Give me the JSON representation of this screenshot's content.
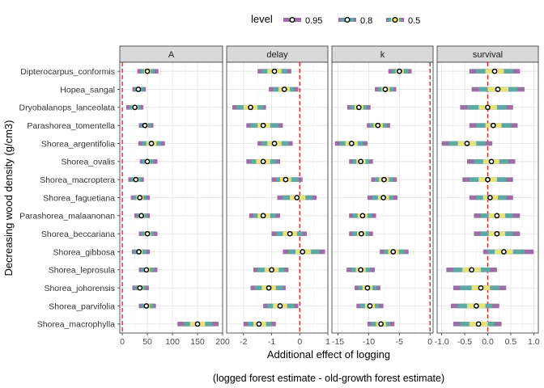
{
  "chart_data": {
    "type": "interval",
    "legend": {
      "title": "level",
      "position": "top",
      "entries": [
        {
          "label": "0.95",
          "color": "#9b6fa3"
        },
        {
          "label": "0.8",
          "color": "#5fa9a5"
        },
        {
          "label": "0.5",
          "color": "#e8e27a"
        }
      ]
    },
    "xlabel": "Additional effect of logging",
    "caption": "(logged forest estimate - old-growth forest estimate)",
    "ylabel": "Decreasing wood density (g/cm3)",
    "categories": [
      "Dipterocarpus_conformis",
      "Hopea_sangal",
      "Dryobalanops_lanceolata",
      "Parashorea_tomentella",
      "Shorea_argentifolia",
      "Shorea_ovalis",
      "Shorea_macroptera",
      "Shorea_faguetiana",
      "Parashorea_malaanonan",
      "Shorea_beccariana",
      "Shorea_gibbosa",
      "Shorea_leprosula",
      "Shorea_johorensis",
      "Shorea_parvifolia",
      "Shorea_macrophylla"
    ],
    "panels": [
      {
        "name": "A",
        "xlim": [
          -5,
          200
        ],
        "ticks": [
          0,
          50,
          100,
          150,
          200
        ],
        "tick_labels": [
          "0",
          "50",
          "100",
          "150",
          "200"
        ],
        "ref_line": 0,
        "intervals": [
          {
            "median": 50,
            "i95": [
              30,
              72
            ],
            "i80": [
              37,
              64
            ],
            "i50": [
              43,
              57
            ]
          },
          {
            "median": 32,
            "i95": [
              20,
              47
            ],
            "i80": [
              24,
              42
            ],
            "i50": [
              28,
              37
            ]
          },
          {
            "median": 25,
            "i95": [
              8,
              42
            ],
            "i80": [
              13,
              37
            ],
            "i50": [
              19,
              31
            ]
          },
          {
            "median": 45,
            "i95": [
              33,
              62
            ],
            "i80": [
              37,
              57
            ],
            "i50": [
              41,
              51
            ]
          },
          {
            "median": 58,
            "i95": [
              32,
              85
            ],
            "i80": [
              40,
              77
            ],
            "i50": [
              48,
              68
            ]
          },
          {
            "median": 50,
            "i95": [
              35,
              70
            ],
            "i80": [
              40,
              63
            ],
            "i50": [
              45,
              56
            ]
          },
          {
            "median": 27,
            "i95": [
              12,
              43
            ],
            "i80": [
              17,
              38
            ],
            "i50": [
              22,
              33
            ]
          },
          {
            "median": 35,
            "i95": [
              17,
              55
            ],
            "i80": [
              22,
              48
            ],
            "i50": [
              28,
              42
            ]
          },
          {
            "median": 38,
            "i95": [
              24,
              55
            ],
            "i80": [
              29,
              50
            ],
            "i50": [
              33,
              44
            ]
          },
          {
            "median": 50,
            "i95": [
              33,
              70
            ],
            "i80": [
              38,
              63
            ],
            "i50": [
              44,
              57
            ]
          },
          {
            "median": 33,
            "i95": [
              19,
              55
            ],
            "i80": [
              23,
              48
            ],
            "i50": [
              28,
              40
            ]
          },
          {
            "median": 48,
            "i95": [
              33,
              70
            ],
            "i80": [
              38,
              63
            ],
            "i50": [
              43,
              55
            ]
          },
          {
            "median": 35,
            "i95": [
              20,
              53
            ],
            "i80": [
              25,
              47
            ],
            "i50": [
              30,
              41
            ]
          },
          {
            "median": 48,
            "i95": [
              33,
              67
            ],
            "i80": [
              38,
              62
            ],
            "i50": [
              43,
              55
            ]
          },
          {
            "median": 150,
            "i95": [
              110,
              192
            ],
            "i80": [
              122,
              180
            ],
            "i50": [
              135,
              165
            ]
          }
        ]
      },
      {
        "name": "delay",
        "xlim": [
          -2.6,
          1.0
        ],
        "ticks": [
          -2,
          -1,
          0,
          1
        ],
        "tick_labels": [
          "-2",
          "-1",
          "0",
          "1"
        ],
        "ref_line": 0,
        "intervals": [
          {
            "median": -0.9,
            "i95": [
              -1.5,
              -0.3
            ],
            "i80": [
              -1.35,
              -0.45
            ],
            "i50": [
              -1.15,
              -0.65
            ]
          },
          {
            "median": -0.55,
            "i95": [
              -1.1,
              -0.05
            ],
            "i80": [
              -0.95,
              -0.2
            ],
            "i50": [
              -0.75,
              -0.35
            ]
          },
          {
            "median": -1.75,
            "i95": [
              -2.4,
              -1.2
            ],
            "i80": [
              -2.25,
              -1.3
            ],
            "i50": [
              -2.0,
              -1.5
            ]
          },
          {
            "median": -1.3,
            "i95": [
              -1.9,
              -0.6
            ],
            "i80": [
              -1.75,
              -0.75
            ],
            "i50": [
              -1.5,
              -1.05
            ]
          },
          {
            "median": -0.9,
            "i95": [
              -1.5,
              -0.25
            ],
            "i80": [
              -1.35,
              -0.4
            ],
            "i50": [
              -1.15,
              -0.65
            ]
          },
          {
            "median": -1.3,
            "i95": [
              -1.9,
              -0.7
            ],
            "i80": [
              -1.75,
              -0.85
            ],
            "i50": [
              -1.55,
              -1.05
            ]
          },
          {
            "median": -0.5,
            "i95": [
              -1.0,
              0.1
            ],
            "i80": [
              -0.85,
              -0.05
            ],
            "i50": [
              -0.7,
              -0.3
            ]
          },
          {
            "median": -0.1,
            "i95": [
              -0.8,
              0.6
            ],
            "i80": [
              -0.6,
              0.45
            ],
            "i50": [
              -0.35,
              0.2
            ]
          },
          {
            "median": -1.3,
            "i95": [
              -1.8,
              -0.7
            ],
            "i80": [
              -1.65,
              -0.85
            ],
            "i50": [
              -1.5,
              -1.05
            ]
          },
          {
            "median": -0.35,
            "i95": [
              -1.0,
              0.25
            ],
            "i80": [
              -0.85,
              0.1
            ],
            "i50": [
              -0.6,
              -0.1
            ]
          },
          {
            "median": 0.1,
            "i95": [
              -0.6,
              0.9
            ],
            "i80": [
              -0.4,
              0.7
            ],
            "i50": [
              -0.15,
              0.4
            ]
          },
          {
            "median": -1.0,
            "i95": [
              -1.65,
              -0.4
            ],
            "i80": [
              -1.5,
              -0.55
            ],
            "i50": [
              -1.25,
              -0.75
            ]
          },
          {
            "median": -1.1,
            "i95": [
              -1.75,
              -0.5
            ],
            "i80": [
              -1.6,
              -0.6
            ],
            "i50": [
              -1.35,
              -0.85
            ]
          },
          {
            "median": -0.7,
            "i95": [
              -1.3,
              -0.05
            ],
            "i80": [
              -1.15,
              -0.2
            ],
            "i50": [
              -0.95,
              -0.45
            ]
          },
          {
            "median": -1.45,
            "i95": [
              -2.0,
              -0.85
            ],
            "i80": [
              -1.85,
              -1.0
            ],
            "i50": [
              -1.65,
              -1.2
            ]
          }
        ]
      },
      {
        "name": "k",
        "xlim": [
          -16,
          0.5
        ],
        "ticks": [
          -15,
          -10,
          -5,
          0
        ],
        "tick_labels": [
          "-15",
          "-10",
          "-5",
          "0"
        ],
        "ref_line": 0,
        "intervals": [
          {
            "median": -5.0,
            "i95": [
              -6.8,
              -3.0
            ],
            "i80": [
              -6.2,
              -3.6
            ],
            "i50": [
              -5.6,
              -4.3
            ]
          },
          {
            "median": -7.3,
            "i95": [
              -9.0,
              -5.5
            ],
            "i80": [
              -8.5,
              -6.0
            ],
            "i50": [
              -7.9,
              -6.6
            ]
          },
          {
            "median": -11.6,
            "i95": [
              -13.5,
              -9.7
            ],
            "i80": [
              -12.9,
              -10.3
            ],
            "i50": [
              -12.3,
              -10.9
            ]
          },
          {
            "median": -8.5,
            "i95": [
              -10.3,
              -6.5
            ],
            "i80": [
              -9.8,
              -7.0
            ],
            "i50": [
              -9.2,
              -7.7
            ]
          },
          {
            "median": -12.8,
            "i95": [
              -15.5,
              -10.2
            ],
            "i80": [
              -14.7,
              -10.9
            ],
            "i50": [
              -13.8,
              -11.8
            ]
          },
          {
            "median": -11.3,
            "i95": [
              -13.2,
              -9.3
            ],
            "i80": [
              -12.6,
              -9.9
            ],
            "i50": [
              -12.0,
              -10.5
            ]
          },
          {
            "median": -7.5,
            "i95": [
              -9.6,
              -5.4
            ],
            "i80": [
              -9.0,
              -6.0
            ],
            "i50": [
              -8.3,
              -6.7
            ]
          },
          {
            "median": -7.6,
            "i95": [
              -10.2,
              -5.3
            ],
            "i80": [
              -9.4,
              -6.0
            ],
            "i50": [
              -8.5,
              -6.7
            ]
          },
          {
            "median": -11.0,
            "i95": [
              -13.2,
              -8.8
            ],
            "i80": [
              -12.6,
              -9.5
            ],
            "i50": [
              -11.8,
              -10.2
            ]
          },
          {
            "median": -11.2,
            "i95": [
              -13.2,
              -9.3
            ],
            "i80": [
              -12.6,
              -9.9
            ],
            "i50": [
              -11.9,
              -10.5
            ]
          },
          {
            "median": -6.0,
            "i95": [
              -8.2,
              -3.5
            ],
            "i80": [
              -7.5,
              -4.2
            ],
            "i50": [
              -6.8,
              -5.1
            ]
          },
          {
            "median": -11.3,
            "i95": [
              -13.6,
              -9.0
            ],
            "i80": [
              -12.9,
              -9.7
            ],
            "i50": [
              -12.1,
              -10.5
            ]
          },
          {
            "median": -10.2,
            "i95": [
              -12.3,
              -8.1
            ],
            "i80": [
              -11.7,
              -8.7
            ],
            "i50": [
              -11.0,
              -9.4
            ]
          },
          {
            "median": -9.8,
            "i95": [
              -12.0,
              -7.6
            ],
            "i80": [
              -11.4,
              -8.3
            ],
            "i50": [
              -10.6,
              -9.0
            ]
          },
          {
            "median": -8.0,
            "i95": [
              -10.2,
              -5.8
            ],
            "i80": [
              -9.6,
              -6.5
            ],
            "i50": [
              -8.8,
              -7.2
            ]
          }
        ]
      },
      {
        "name": "survival",
        "xlim": [
          -1.1,
          1.1
        ],
        "ticks": [
          -1.0,
          -0.5,
          0.0,
          0.5,
          1.0
        ],
        "tick_labels": [
          "-1.0",
          "-0.5",
          "0.0",
          "0.5",
          "1.0"
        ],
        "ref_line": 0,
        "intervals": [
          {
            "median": 0.15,
            "i95": [
              -0.4,
              0.7
            ],
            "i80": [
              -0.25,
              0.55
            ],
            "i50": [
              -0.05,
              0.35
            ]
          },
          {
            "median": 0.22,
            "i95": [
              -0.35,
              0.8
            ],
            "i80": [
              -0.2,
              0.65
            ],
            "i50": [
              0.0,
              0.45
            ]
          },
          {
            "median": 0.0,
            "i95": [
              -0.6,
              0.55
            ],
            "i80": [
              -0.45,
              0.4
            ],
            "i50": [
              -0.2,
              0.2
            ]
          },
          {
            "median": 0.12,
            "i95": [
              -0.4,
              0.65
            ],
            "i80": [
              -0.25,
              0.5
            ],
            "i50": [
              -0.05,
              0.3
            ]
          },
          {
            "median": -0.45,
            "i95": [
              -1.0,
              0.1
            ],
            "i80": [
              -0.85,
              -0.05
            ],
            "i50": [
              -0.65,
              -0.25
            ]
          },
          {
            "median": 0.08,
            "i95": [
              -0.45,
              0.6
            ],
            "i80": [
              -0.3,
              0.45
            ],
            "i50": [
              -0.1,
              0.25
            ]
          },
          {
            "median": 0.0,
            "i95": [
              -0.55,
              0.55
            ],
            "i80": [
              -0.4,
              0.4
            ],
            "i50": [
              -0.2,
              0.2
            ]
          },
          {
            "median": 0.05,
            "i95": [
              -0.4,
              0.55
            ],
            "i80": [
              -0.25,
              0.4
            ],
            "i50": [
              -0.1,
              0.22
            ]
          },
          {
            "median": 0.2,
            "i95": [
              -0.3,
              0.7
            ],
            "i80": [
              -0.15,
              0.55
            ],
            "i50": [
              0.02,
              0.38
            ]
          },
          {
            "median": 0.2,
            "i95": [
              -0.3,
              0.7
            ],
            "i80": [
              -0.15,
              0.55
            ],
            "i50": [
              0.02,
              0.38
            ]
          },
          {
            "median": 0.35,
            "i95": [
              -0.1,
              1.0
            ],
            "i80": [
              0.0,
              0.8
            ],
            "i50": [
              0.15,
              0.55
            ]
          },
          {
            "median": -0.35,
            "i95": [
              -0.9,
              0.2
            ],
            "i80": [
              -0.75,
              0.05
            ],
            "i50": [
              -0.55,
              -0.15
            ]
          },
          {
            "median": -0.15,
            "i95": [
              -0.75,
              0.4
            ],
            "i80": [
              -0.6,
              0.25
            ],
            "i50": [
              -0.35,
              0.05
            ]
          },
          {
            "median": -0.25,
            "i95": [
              -0.8,
              0.25
            ],
            "i80": [
              -0.65,
              0.1
            ],
            "i50": [
              -0.45,
              -0.05
            ]
          },
          {
            "median": -0.2,
            "i95": [
              -0.75,
              0.3
            ],
            "i80": [
              -0.6,
              0.15
            ],
            "i50": [
              -0.4,
              0.0
            ]
          }
        ]
      }
    ]
  }
}
